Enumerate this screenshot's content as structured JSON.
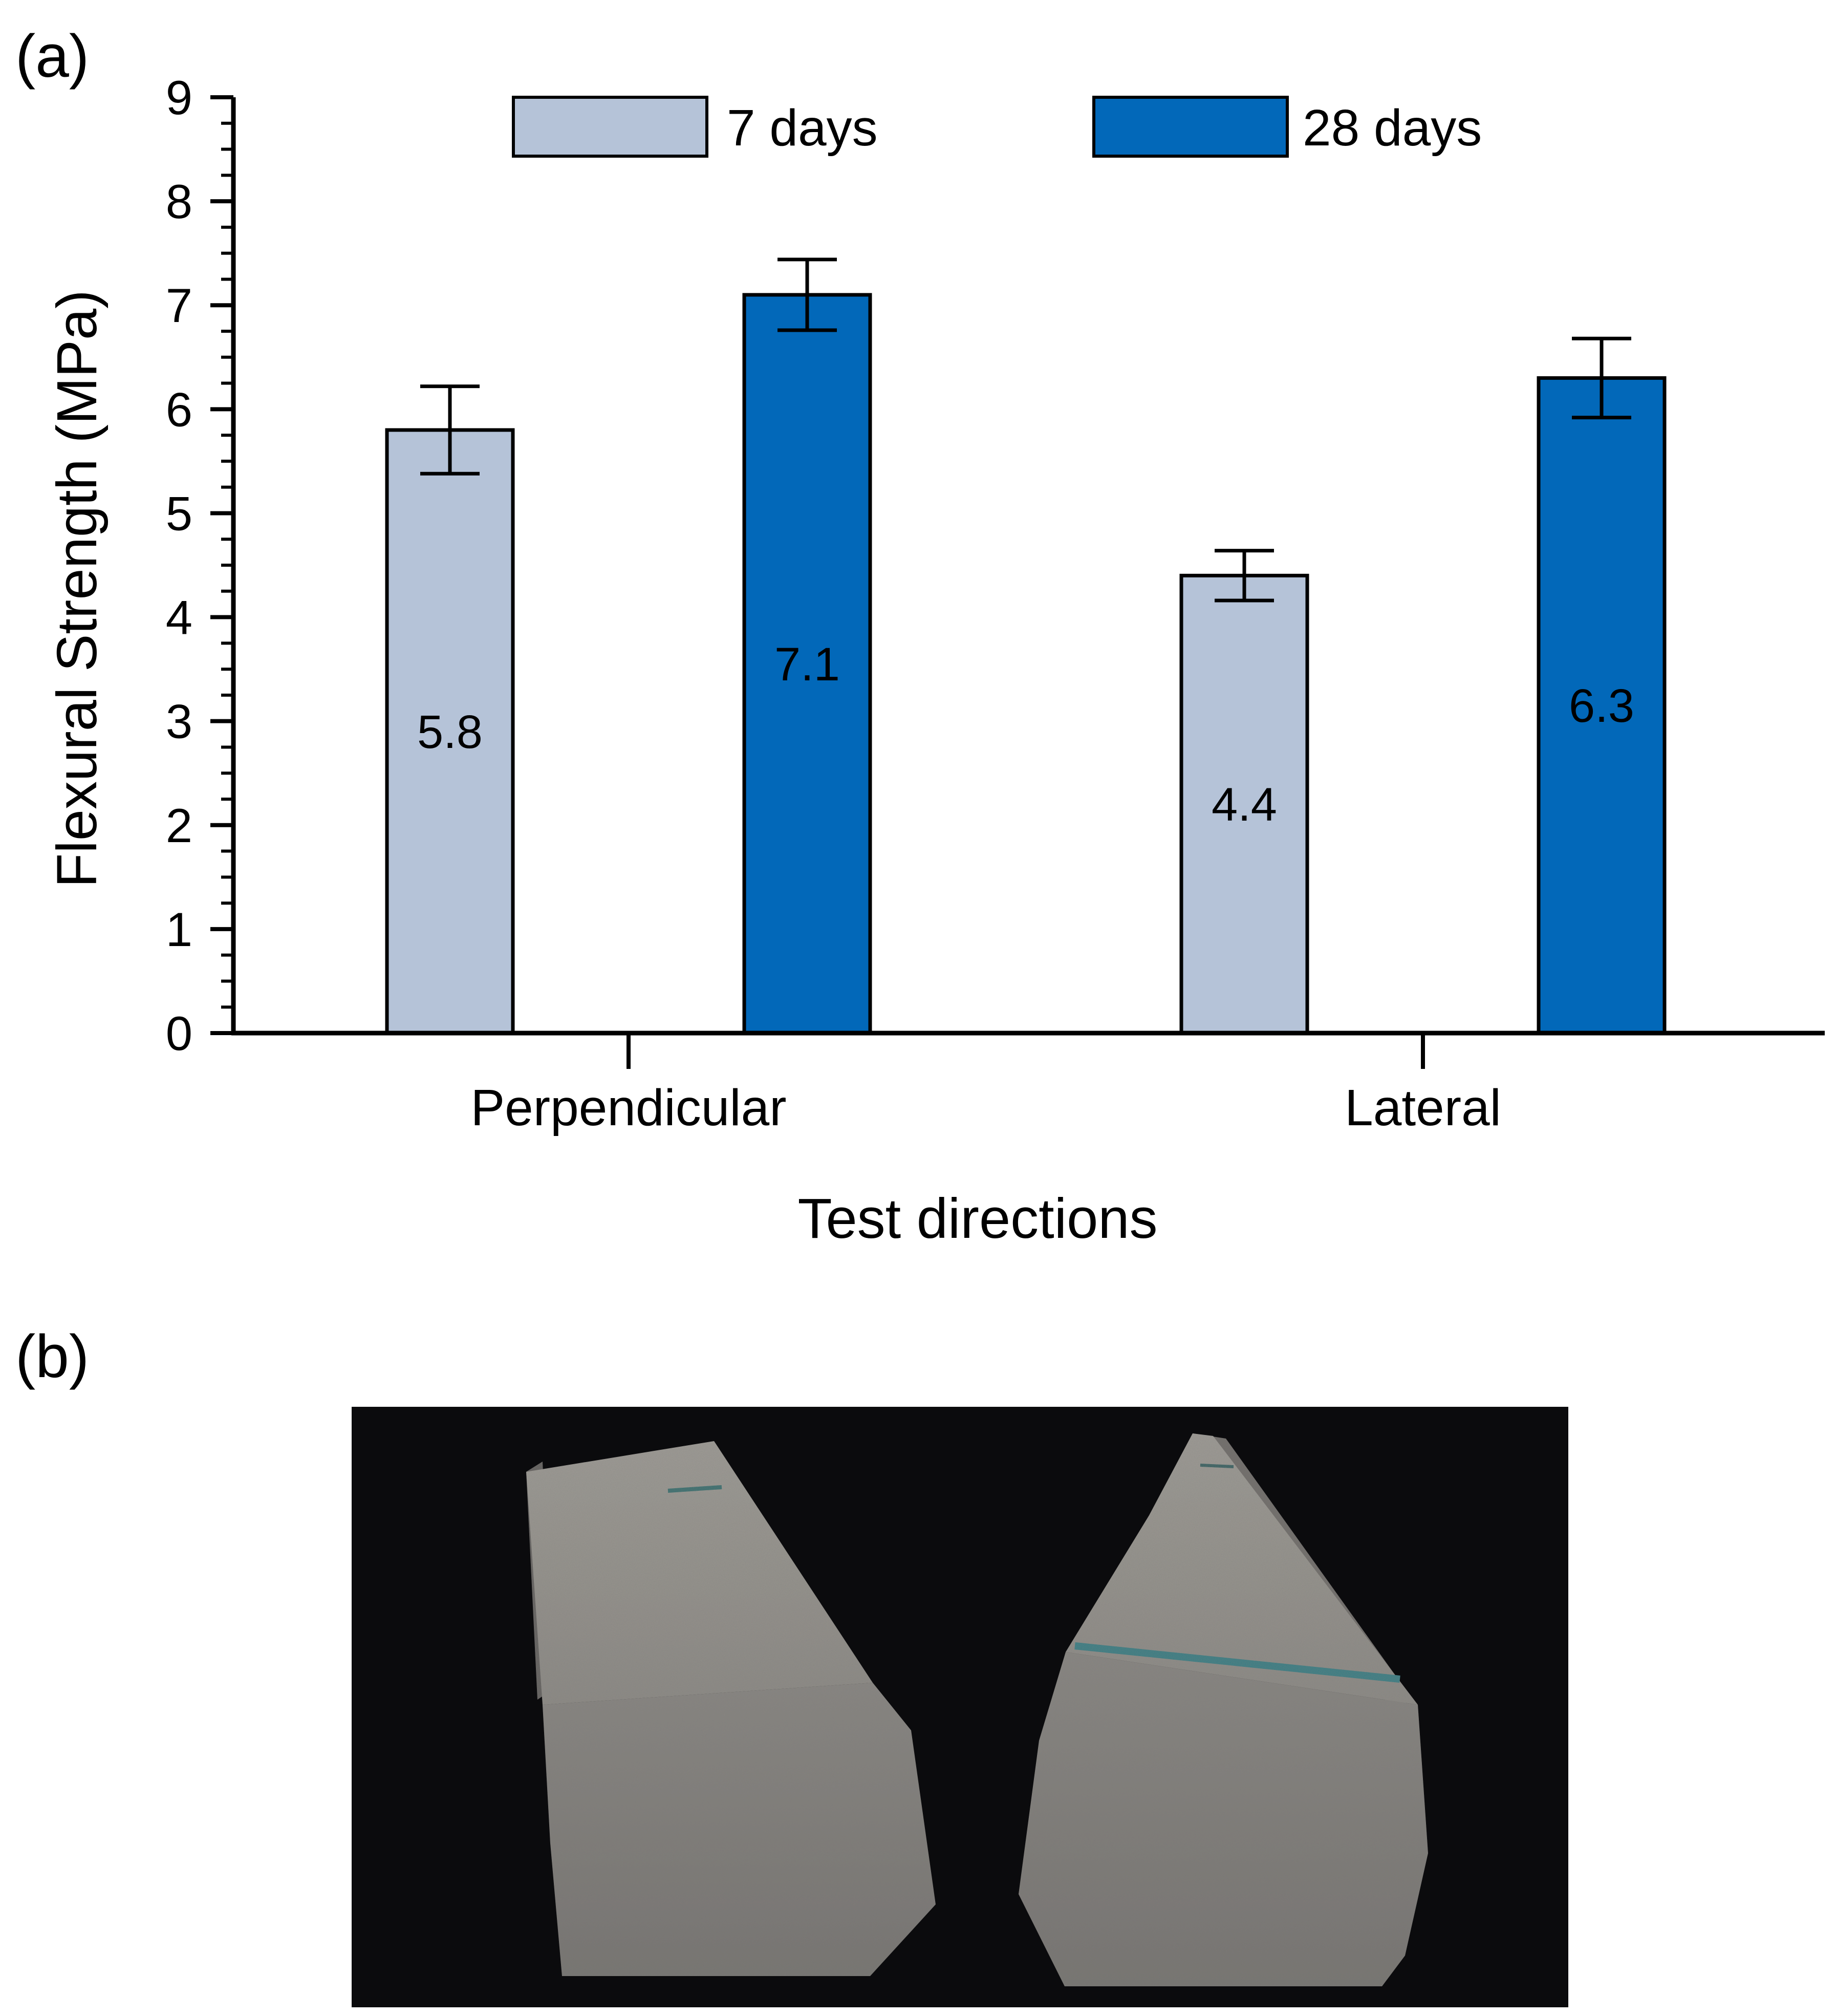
{
  "panel_a_label": "(a)",
  "panel_b_label": "(b)",
  "colors": {
    "seven_days": "#b5c3d8",
    "twenty_eight_days": "#0268b9",
    "photo_background": "#0b0b0d",
    "concrete": "#8d8a85"
  },
  "chart_data": {
    "type": "bar",
    "categories": [
      "Perpendicular",
      "Lateral"
    ],
    "series": [
      {
        "name": "7 days",
        "values": [
          5.8,
          4.4
        ],
        "error": [
          0.42,
          0.24
        ],
        "labels": [
          "5.8",
          "4.4"
        ]
      },
      {
        "name": "28 days",
        "values": [
          7.1,
          6.3
        ],
        "error": [
          0.34,
          0.38
        ],
        "labels": [
          "7.1",
          "6.3"
        ]
      }
    ],
    "title": "",
    "xlabel": "Test directions",
    "ylabel": "Flexural Strength (MPa)",
    "ylim": [
      0,
      9
    ],
    "yticks": [
      "0",
      "1",
      "2",
      "3",
      "4",
      "5",
      "6",
      "7",
      "8",
      "9"
    ],
    "legend_position": "top",
    "grid": false
  },
  "photo": {
    "description_icon": "broken-concrete-prisms-photo"
  }
}
